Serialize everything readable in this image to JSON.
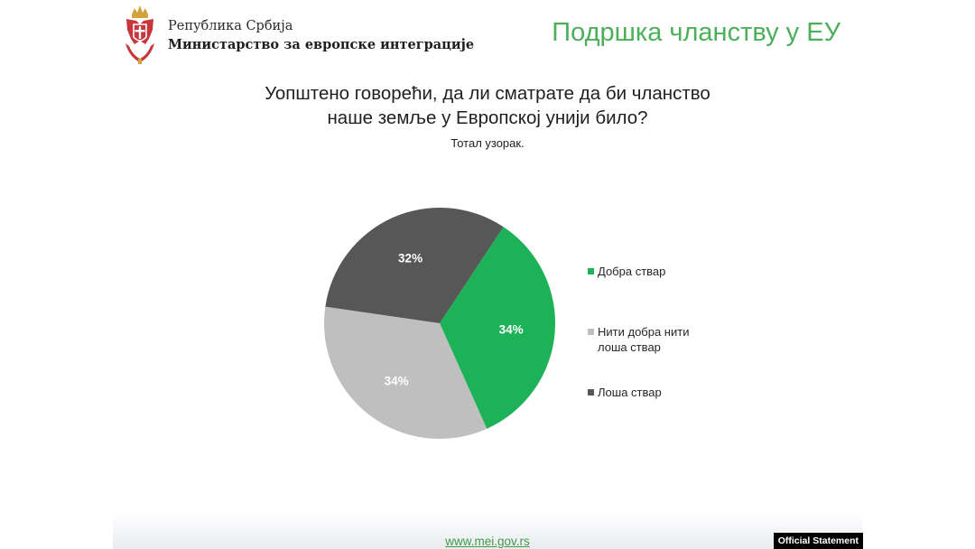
{
  "header": {
    "org_line1": "Република Србија",
    "org_line2": "Министарство за европске интеграције",
    "slide_title": "Подршка чланству у ЕУ"
  },
  "question": {
    "line1": "Уопштено говорећи, да ли сматрате да би чланство",
    "line2": "наше земље у Европској унији било?",
    "sample": "Тотал узорак."
  },
  "chart_data": {
    "type": "pie",
    "title": "Уопштено говорећи, да ли сматрате да би чланство наше земље у Европској унији било?",
    "slices": [
      {
        "name": "Добра ствар",
        "value": 34,
        "label": "34%",
        "color": "#1db257"
      },
      {
        "name": "Нити добра нити лоша ствар",
        "value": 34,
        "label": "34%",
        "color": "#bfbfbf"
      },
      {
        "name": "Лоша ствар",
        "value": 32,
        "label": "32%",
        "color": "#575757"
      }
    ],
    "legend_position": "right"
  },
  "legend": [
    {
      "line1": "Добра ствар",
      "line2": "",
      "color": "#1db257"
    },
    {
      "line1": "Нити добра нити",
      "line2": "лоша ствар",
      "color": "#bfbfbf"
    },
    {
      "line1": "Лоша ствар",
      "line2": "",
      "color": "#575757"
    }
  ],
  "footer": {
    "url": "www.mei.gov.rs",
    "badge": "Official Statement"
  },
  "colors": {
    "accent_green": "#4cb05b",
    "crest_red": "#c6363c",
    "crest_gold": "#d4a23a"
  }
}
